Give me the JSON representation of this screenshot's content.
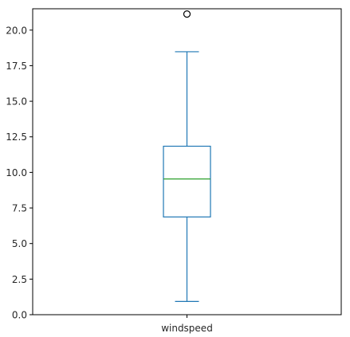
{
  "chart_data": {
    "type": "box",
    "title": "",
    "xlabel": "",
    "ylabel": "",
    "ylim": [
      0.0,
      21.5
    ],
    "yticks": [
      0.0,
      2.5,
      5.0,
      7.5,
      10.0,
      12.5,
      15.0,
      17.5,
      20.0
    ],
    "ytick_labels": [
      "0.0",
      "2.5",
      "5.0",
      "7.5",
      "10.0",
      "12.5",
      "15.0",
      "17.5",
      "20.0"
    ],
    "grid": false,
    "legend": "none",
    "colors": {
      "box": "#1f77b4",
      "median": "#2ca02c",
      "outlier": "#000000"
    },
    "series": [
      {
        "category": "windspeed",
        "whisker_low": 0.93,
        "q1": 6.87,
        "median": 9.54,
        "q3": 11.84,
        "whisker_high": 18.48,
        "outliers": [
          21.13
        ]
      }
    ]
  }
}
